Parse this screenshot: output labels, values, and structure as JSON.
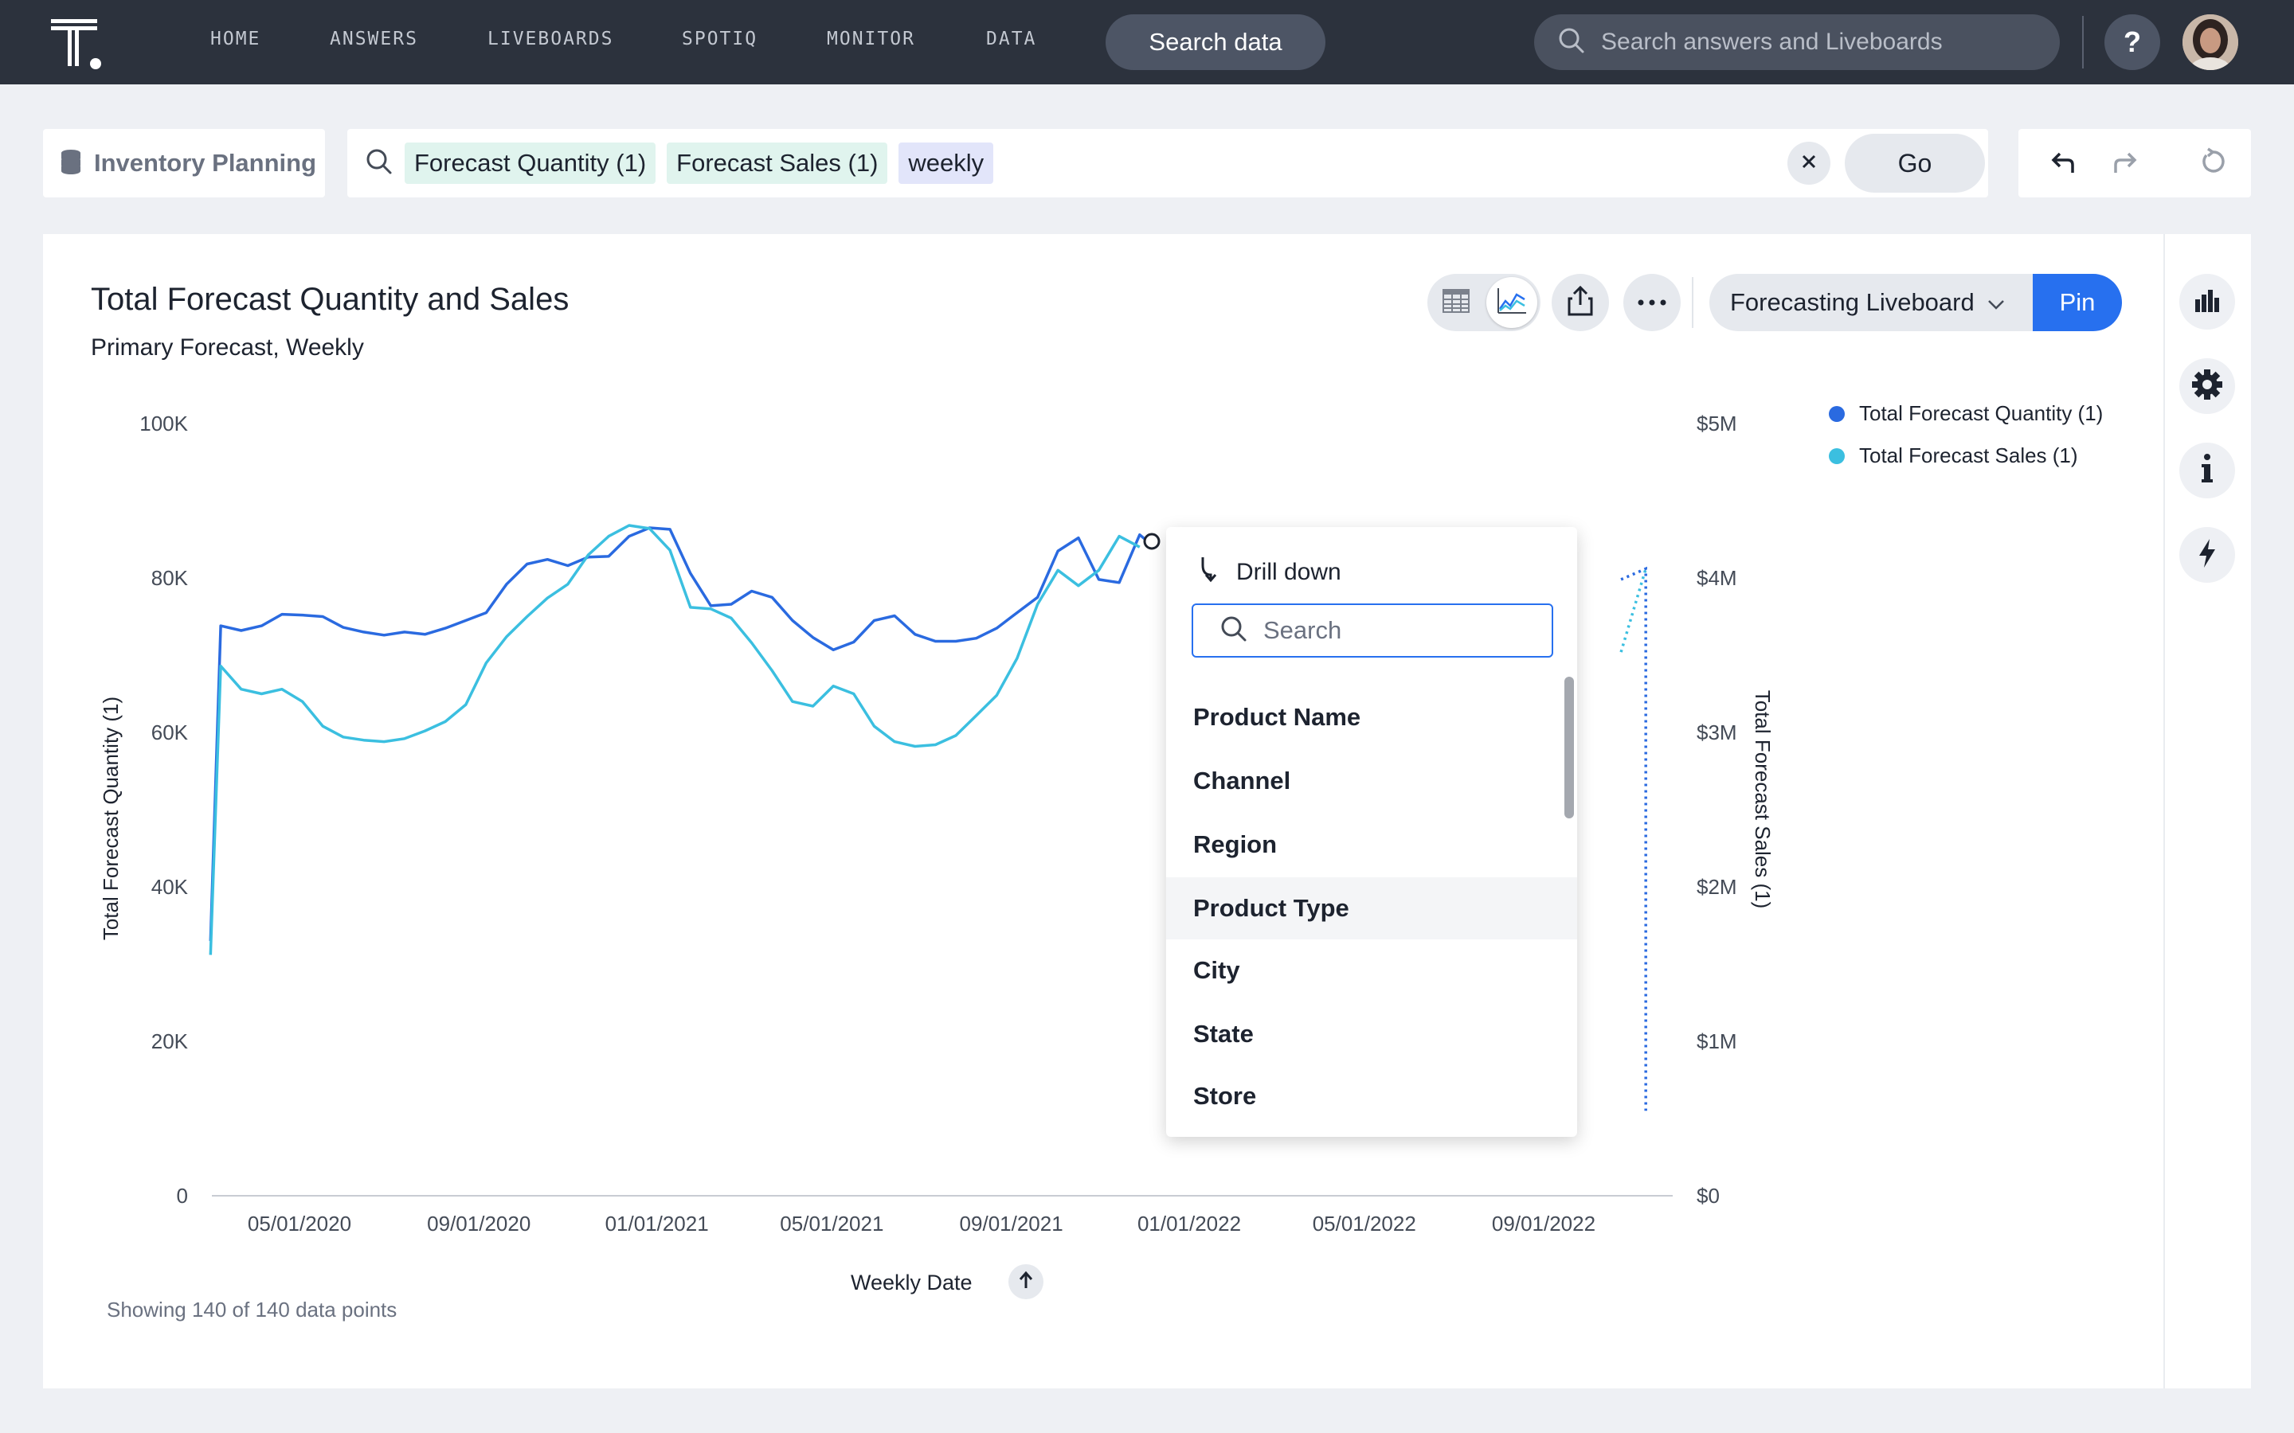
{
  "nav": {
    "items": [
      "HOME",
      "ANSWERS",
      "LIVEBOARDS",
      "SPOTIQ",
      "MONITOR",
      "DATA"
    ],
    "search_data": "Search data",
    "global_search_placeholder": "Search answers and Liveboards",
    "help": "?"
  },
  "search": {
    "datasource": "Inventory Planning",
    "tokens": [
      "Forecast Quantity (1)",
      "Forecast Sales (1)",
      "weekly"
    ],
    "go": "Go"
  },
  "answer": {
    "title": "Total Forecast Quantity and Sales",
    "subtitle": "Primary Forecast, Weekly",
    "liveboard_select": "Forecasting Liveboard",
    "pin": "Pin",
    "footer": "Showing 140 of 140 data points",
    "x_axis_title": "Weekly Date"
  },
  "drill_menu": {
    "title": "Drill down",
    "search_placeholder": "Search",
    "items": [
      "Product Name",
      "Channel",
      "Region",
      "Product Type",
      "City",
      "State",
      "Store"
    ],
    "hovered": "Product Type"
  },
  "colors": {
    "quantity": "#2a6ae0",
    "sales": "#3bbfe0",
    "accent": "#2770ef",
    "nav_bg": "#2c323d"
  },
  "chart_data": {
    "type": "line",
    "xlabel": "Weekly Date",
    "ylabel": "Total Forecast Quantity (1)",
    "y2label": "Total Forecast Sales (1)",
    "x_ticks": [
      "05/01/2020",
      "09/01/2020",
      "01/01/2021",
      "05/01/2021",
      "09/01/2021",
      "01/01/2022",
      "05/01/2022",
      "09/01/2022"
    ],
    "y_ticks": [
      "0",
      "20K",
      "40K",
      "60K",
      "80K",
      "100K"
    ],
    "y2_ticks": [
      "$0",
      "$1M",
      "$2M",
      "$3M",
      "$4M",
      "$5M"
    ],
    "ylim": [
      0,
      100000
    ],
    "y2lim": [
      0,
      5000000
    ],
    "legend_position": "top-right",
    "series": [
      {
        "name": "Total Forecast Quantity (1)",
        "axis": "left",
        "points": [
          [
            "2020-03-01",
            33000
          ],
          [
            "2020-03-08",
            73800
          ],
          [
            "2020-03-22",
            73200
          ],
          [
            "2020-04-05",
            73800
          ],
          [
            "2020-04-19",
            75300
          ],
          [
            "2020-05-03",
            75200
          ],
          [
            "2020-05-17",
            75000
          ],
          [
            "2020-05-31",
            73600
          ],
          [
            "2020-06-14",
            73000
          ],
          [
            "2020-06-28",
            72600
          ],
          [
            "2020-07-12",
            73000
          ],
          [
            "2020-07-26",
            72700
          ],
          [
            "2020-08-09",
            73500
          ],
          [
            "2020-08-23",
            74500
          ],
          [
            "2020-09-06",
            75500
          ],
          [
            "2020-09-20",
            79200
          ],
          [
            "2020-10-04",
            81800
          ],
          [
            "2020-10-18",
            82400
          ],
          [
            "2020-11-01",
            81600
          ],
          [
            "2020-11-15",
            82700
          ],
          [
            "2020-11-29",
            82800
          ],
          [
            "2020-12-13",
            85400
          ],
          [
            "2020-12-27",
            86500
          ],
          [
            "2021-01-10",
            86300
          ],
          [
            "2021-01-24",
            80600
          ],
          [
            "2021-02-07",
            76400
          ],
          [
            "2021-02-21",
            76600
          ],
          [
            "2021-03-07",
            78300
          ],
          [
            "2021-03-21",
            77500
          ],
          [
            "2021-04-04",
            74500
          ],
          [
            "2021-04-18",
            72300
          ],
          [
            "2021-05-02",
            70700
          ],
          [
            "2021-05-16",
            71700
          ],
          [
            "2021-05-30",
            74500
          ],
          [
            "2021-06-13",
            75100
          ],
          [
            "2021-06-27",
            72700
          ],
          [
            "2021-07-11",
            71800
          ],
          [
            "2021-07-25",
            71800
          ],
          [
            "2021-08-08",
            72200
          ],
          [
            "2021-08-22",
            73500
          ],
          [
            "2021-09-05",
            75500
          ],
          [
            "2021-09-19",
            77500
          ],
          [
            "2021-10-03",
            83500
          ],
          [
            "2021-10-17",
            85200
          ],
          [
            "2021-10-31",
            79800
          ],
          [
            "2021-11-14",
            79400
          ],
          [
            "2021-11-28",
            85600
          ],
          [
            "2021-12-05",
            84500
          ]
        ]
      },
      {
        "name": "Total Forecast Sales (1)",
        "axis": "right",
        "points": [
          [
            "2020-03-01",
            1560000
          ],
          [
            "2020-03-08",
            3430000
          ],
          [
            "2020-03-22",
            3280000
          ],
          [
            "2020-04-05",
            3250000
          ],
          [
            "2020-04-19",
            3280000
          ],
          [
            "2020-05-03",
            3200000
          ],
          [
            "2020-05-17",
            3040000
          ],
          [
            "2020-05-31",
            2970000
          ],
          [
            "2020-06-14",
            2950000
          ],
          [
            "2020-06-28",
            2940000
          ],
          [
            "2020-07-12",
            2960000
          ],
          [
            "2020-07-26",
            3010000
          ],
          [
            "2020-08-09",
            3070000
          ],
          [
            "2020-08-23",
            3180000
          ],
          [
            "2020-09-06",
            3450000
          ],
          [
            "2020-09-20",
            3620000
          ],
          [
            "2020-10-04",
            3750000
          ],
          [
            "2020-10-18",
            3870000
          ],
          [
            "2020-11-01",
            3960000
          ],
          [
            "2020-11-15",
            4150000
          ],
          [
            "2020-11-29",
            4270000
          ],
          [
            "2020-12-13",
            4340000
          ],
          [
            "2020-12-27",
            4320000
          ],
          [
            "2021-01-10",
            4180000
          ],
          [
            "2021-01-24",
            3810000
          ],
          [
            "2021-02-07",
            3800000
          ],
          [
            "2021-02-21",
            3740000
          ],
          [
            "2021-03-07",
            3580000
          ],
          [
            "2021-03-21",
            3400000
          ],
          [
            "2021-04-04",
            3200000
          ],
          [
            "2021-04-18",
            3170000
          ],
          [
            "2021-05-02",
            3300000
          ],
          [
            "2021-05-16",
            3250000
          ],
          [
            "2021-05-30",
            3040000
          ],
          [
            "2021-06-13",
            2940000
          ],
          [
            "2021-06-27",
            2910000
          ],
          [
            "2021-07-11",
            2920000
          ],
          [
            "2021-07-25",
            2980000
          ],
          [
            "2021-08-08",
            3110000
          ],
          [
            "2021-08-22",
            3240000
          ],
          [
            "2021-09-05",
            3480000
          ],
          [
            "2021-09-19",
            3830000
          ],
          [
            "2021-10-03",
            4050000
          ],
          [
            "2021-10-17",
            3950000
          ],
          [
            "2021-10-31",
            4050000
          ],
          [
            "2021-11-14",
            4270000
          ],
          [
            "2021-11-28",
            4200000
          ]
        ]
      }
    ],
    "forecast_tail": {
      "Total Forecast Quantity (1)": [
        [
          "2022-10-24",
          79800
        ],
        [
          "2022-11-10",
          81200
        ],
        [
          "2022-11-10",
          11000
        ]
      ],
      "Total Forecast Sales (1)": [
        [
          "2022-10-24",
          3520000
        ],
        [
          "2022-11-10",
          4060000
        ]
      ]
    }
  }
}
